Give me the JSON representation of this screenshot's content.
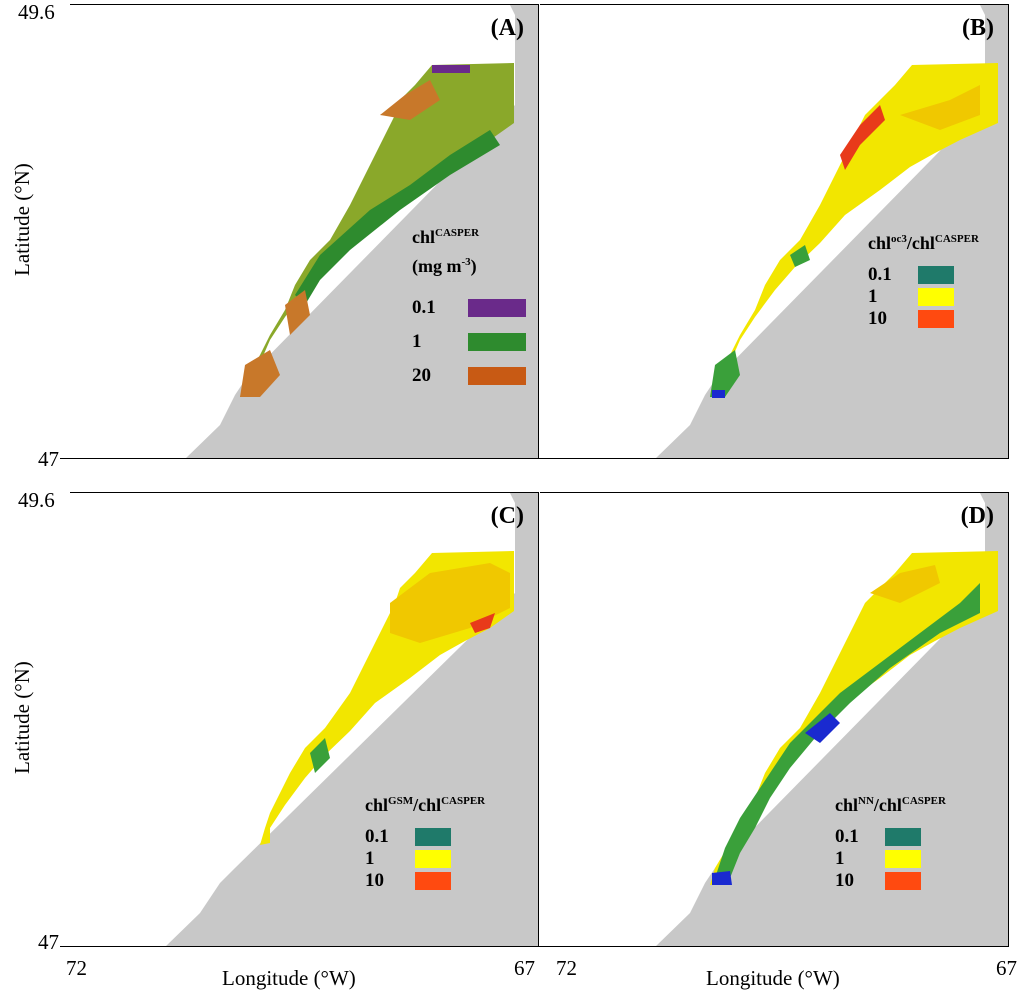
{
  "figure": {
    "x_axis_label": "Longitude (°W)",
    "y_axis_label": "Latitude (°N)",
    "lat_ticks": {
      "top": "49.6",
      "bottom": "47"
    },
    "lon_ticks": {
      "left": "72",
      "right": "67"
    }
  },
  "panels": [
    {
      "id": "A",
      "label": "(A)",
      "legend": {
        "title_main": "chl",
        "title_sup": "CASPER",
        "units_main": "(mg m",
        "units_sup": "-3",
        "units_end": ")",
        "items": [
          {
            "label": "0.1",
            "color": "#6a2a8a"
          },
          {
            "label": "1",
            "color": "#2e8b2e"
          },
          {
            "label": "20",
            "color": "#c85a14"
          }
        ]
      }
    },
    {
      "id": "B",
      "label": "(B)",
      "legend": {
        "num_main": "chl",
        "num_sup": "oc3",
        "den_main": "/chl",
        "den_sup": "CASPER",
        "items": [
          {
            "label": "0.1",
            "color": "#1f7a6a"
          },
          {
            "label": "1",
            "color": "#ffff00"
          },
          {
            "label": "10",
            "color": "#ff4a10"
          }
        ]
      }
    },
    {
      "id": "C",
      "label": "(C)",
      "legend": {
        "num_main": "chl",
        "num_sup": "GSM",
        "den_main": "/chl",
        "den_sup": "CASPER",
        "items": [
          {
            "label": "0.1",
            "color": "#1f7a6a"
          },
          {
            "label": "1",
            "color": "#ffff00"
          },
          {
            "label": "10",
            "color": "#ff4a10"
          }
        ]
      }
    },
    {
      "id": "D",
      "label": "(D)",
      "legend": {
        "num_main": "chl",
        "num_sup": "NN",
        "den_main": "/chl",
        "den_sup": "CASPER",
        "items": [
          {
            "label": "0.1",
            "color": "#1f7a6a"
          },
          {
            "label": "1",
            "color": "#ffff00"
          },
          {
            "label": "10",
            "color": "#ff4a10"
          }
        ]
      }
    }
  ],
  "colors": {
    "land": "#c8c8c8",
    "a_base": "#8aa82a",
    "a_dark": "#2e8b2e",
    "a_orange": "#c8782a",
    "yellow": "#f2e600",
    "orange_yellow": "#f0c800",
    "green": "#3aa03a",
    "blue": "#1a2ad0",
    "red": "#e83a1a"
  }
}
